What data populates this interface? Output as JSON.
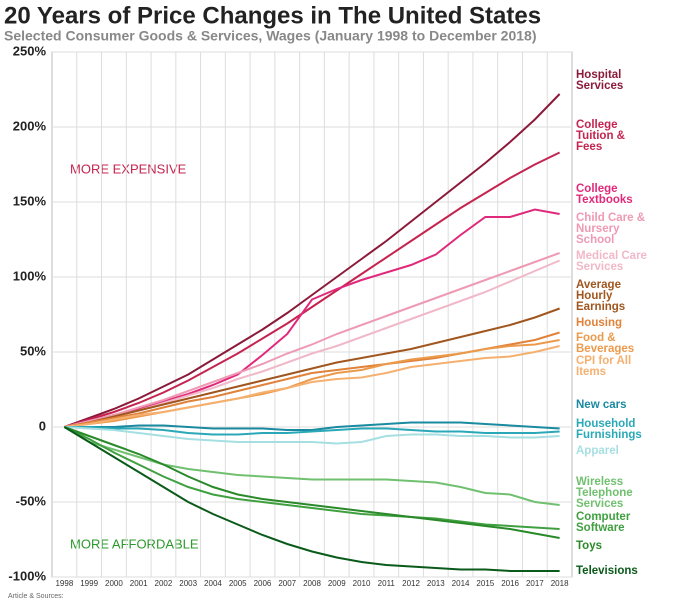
{
  "chart_data": {
    "type": "line",
    "title": "20 Years of Price Changes in The United States",
    "subtitle": "Selected Consumer Goods & Services, Wages (January 1998 to December 2018)",
    "annotations": [
      "MORE EXPENSIVE",
      "MORE AFFORDABLE"
    ],
    "footer": "Article & Sources:",
    "categories": [
      "1998",
      "1999",
      "2000",
      "2001",
      "2002",
      "2003",
      "2004",
      "2005",
      "2006",
      "2007",
      "2008",
      "2009",
      "2010",
      "2011",
      "2012",
      "2013",
      "2014",
      "2015",
      "2016",
      "2017",
      "2018"
    ],
    "ylim": [
      -100,
      250
    ],
    "yticks": [
      {
        "value": 250,
        "label": "250%"
      },
      {
        "value": 200,
        "label": "200%"
      },
      {
        "value": 150,
        "label": "150%"
      },
      {
        "value": 100,
        "label": "100%"
      },
      {
        "value": 50,
        "label": "50%"
      },
      0,
      {
        "value": -50,
        "label": "-50%"
      },
      {
        "value": -100,
        "label": "-100%"
      }
    ],
    "grid": true,
    "series": [
      {
        "name": "Hospital Services",
        "color": "#8b1a3a",
        "values": [
          0,
          6,
          12,
          19,
          27,
          35,
          45,
          55,
          65,
          76,
          88,
          100,
          112,
          124,
          137,
          150,
          163,
          176,
          190,
          205,
          222
        ]
      },
      {
        "name": "College Tuition & Fees",
        "color": "#c4244f",
        "values": [
          0,
          5,
          10,
          16,
          23,
          31,
          40,
          49,
          59,
          69,
          80,
          91,
          102,
          113,
          124,
          135,
          146,
          156,
          166,
          175,
          183
        ]
      },
      {
        "name": "College Textbooks",
        "color": "#e0297a",
        "values": [
          0,
          4,
          8,
          12,
          17,
          22,
          28,
          35,
          48,
          62,
          85,
          92,
          98,
          103,
          108,
          115,
          128,
          140,
          140,
          145,
          142
        ]
      },
      {
        "name": "Child Care & Nursery School",
        "color": "#ee9ab4",
        "values": [
          0,
          4,
          8,
          13,
          18,
          24,
          30,
          36,
          42,
          49,
          55,
          62,
          68,
          74,
          80,
          86,
          92,
          98,
          104,
          110,
          116
        ]
      },
      {
        "name": "Medical Care Services",
        "color": "#f0b8c8",
        "values": [
          0,
          3,
          7,
          11,
          16,
          21,
          26,
          32,
          37,
          43,
          49,
          54,
          60,
          66,
          72,
          78,
          84,
          90,
          97,
          104,
          111
        ]
      },
      {
        "name": "Average Hourly Earnings",
        "color": "#a0561e",
        "values": [
          0,
          3,
          7,
          11,
          15,
          19,
          23,
          27,
          31,
          35,
          39,
          43,
          46,
          49,
          52,
          56,
          60,
          64,
          68,
          73,
          79
        ]
      },
      {
        "name": "Housing",
        "color": "#e0823a",
        "values": [
          0,
          3,
          6,
          9,
          13,
          17,
          20,
          24,
          28,
          32,
          36,
          38,
          40,
          42,
          44,
          46,
          49,
          52,
          55,
          58,
          63
        ]
      },
      {
        "name": "Food & Beverages",
        "color": "#eb9a4c",
        "values": [
          0,
          2,
          4,
          7,
          10,
          13,
          16,
          19,
          22,
          26,
          32,
          36,
          38,
          42,
          45,
          47,
          49,
          52,
          54,
          55,
          58
        ]
      },
      {
        "name": "CPI for All Items",
        "color": "#f5b070",
        "values": [
          0,
          2,
          5,
          8,
          10,
          13,
          16,
          19,
          23,
          26,
          30,
          32,
          33,
          36,
          40,
          42,
          44,
          46,
          47,
          50,
          54
        ]
      },
      {
        "name": "New cars",
        "color": "#1a8aa0",
        "values": [
          0,
          0,
          0,
          1,
          1,
          0,
          -1,
          -1,
          -1,
          -2,
          -2,
          0,
          1,
          2,
          3,
          3,
          3,
          2,
          1,
          0,
          -1
        ]
      },
      {
        "name": "Household Furnishings",
        "color": "#2aa8b8",
        "values": [
          0,
          0,
          -1,
          -1,
          -2,
          -4,
          -5,
          -5,
          -4,
          -4,
          -3,
          -2,
          -1,
          -1,
          -2,
          -3,
          -3,
          -4,
          -4,
          -4,
          -3
        ]
      },
      {
        "name": "Apparel",
        "color": "#a6dfe2",
        "values": [
          0,
          -1,
          -2,
          -4,
          -6,
          -8,
          -9,
          -10,
          -10,
          -10,
          -10,
          -11,
          -10,
          -6,
          -5,
          -5,
          -6,
          -6,
          -7,
          -7,
          -6
        ]
      },
      {
        "name": "Wireless Telephone Services",
        "color": "#70c070",
        "values": [
          0,
          -10,
          -15,
          -20,
          -25,
          -28,
          -30,
          -32,
          -33,
          -34,
          -35,
          -35,
          -35,
          -35,
          -36,
          -37,
          -40,
          -44,
          -45,
          -50,
          -52
        ]
      },
      {
        "name": "Computer Software",
        "color": "#40a040",
        "values": [
          0,
          -8,
          -17,
          -25,
          -33,
          -40,
          -45,
          -48,
          -50,
          -52,
          -54,
          -56,
          -58,
          -59,
          -60,
          -61,
          -63,
          -65,
          -66,
          -67,
          -68
        ]
      },
      {
        "name": "Toys",
        "color": "#2a8a2a",
        "values": [
          0,
          -6,
          -12,
          -18,
          -25,
          -33,
          -40,
          -45,
          -48,
          -50,
          -52,
          -54,
          -56,
          -58,
          -60,
          -62,
          -64,
          -66,
          -68,
          -71,
          -74
        ]
      },
      {
        "name": "Televisions",
        "color": "#0a5a1a",
        "values": [
          0,
          -10,
          -20,
          -30,
          -40,
          -50,
          -58,
          -65,
          -72,
          -78,
          -83,
          -87,
          -90,
          -92,
          -93,
          -94,
          -95,
          -95,
          -96,
          -96,
          -96
        ]
      }
    ]
  }
}
